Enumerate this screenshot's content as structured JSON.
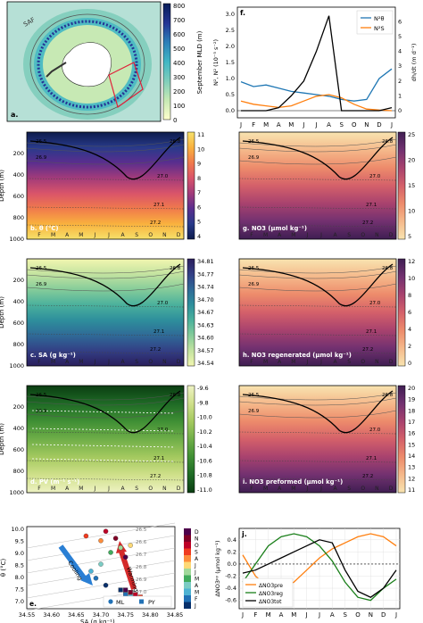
{
  "months": [
    "J",
    "F",
    "M",
    "A",
    "M",
    "J",
    "J",
    "A",
    "S",
    "O",
    "N",
    "D",
    "J"
  ],
  "months_short": [
    "F",
    "M",
    "A",
    "M",
    "J",
    "J",
    "A",
    "S",
    "O",
    "N",
    "D"
  ],
  "panels": {
    "a": {
      "label": "a.",
      "colorbar_label": "September MLD (m)",
      "colorbar_ticks": [
        "800",
        "700",
        "600",
        "500",
        "400",
        "300",
        "200",
        "100",
        "0"
      ],
      "saf_label": "SAF",
      "colormap": [
        "#ffffcc",
        "#c7e9b4",
        "#7fcdbb",
        "#41b6c4",
        "#2c7fb8",
        "#253494",
        "#081d58"
      ]
    },
    "f": {
      "label": "f.",
      "ylabel_left": "N², N² (10⁻⁵ s⁻²)",
      "ylabel_right": "dh/dt (m d⁻¹)",
      "yticks_left": [
        "0.0",
        "0.5",
        "1.0",
        "1.5",
        "2.0",
        "2.5",
        "3.0"
      ],
      "yticks_right": [
        "0",
        "1",
        "2",
        "3",
        "4",
        "5",
        "6"
      ],
      "legend": [
        "N²θ",
        "N²S"
      ],
      "colors": {
        "theta": "#1f77b4",
        "salt": "#ff7f0e",
        "dhdt": "#000000"
      }
    },
    "b": {
      "label": "b. θ (°C)",
      "cbar_ticks": [
        "11",
        "10",
        "9",
        "8",
        "7",
        "6",
        "5",
        "4"
      ],
      "colors": [
        "#0d1b4b",
        "#283a8a",
        "#5a2e8e",
        "#a23b7a",
        "#d9546a",
        "#f07a4c",
        "#f9b13e",
        "#f6e16a"
      ]
    },
    "g": {
      "label": "g. NO3 (μmol kg⁻¹)",
      "cbar_ticks": [
        "25",
        "20",
        "15",
        "10",
        "5"
      ],
      "colors": [
        "#f8e4b0",
        "#f5b98b",
        "#ed8b6b",
        "#d4606a",
        "#a8426e",
        "#723170",
        "#3f1e52"
      ]
    },
    "c": {
      "label": "c. SA (g kg⁻¹)",
      "cbar_ticks": [
        "34.81",
        "34.77",
        "34.74",
        "34.70",
        "34.67",
        "34.63",
        "34.60",
        "34.57",
        "34.54"
      ],
      "colors": [
        "#f2f6b0",
        "#c3e3a0",
        "#85cc9a",
        "#4bb19c",
        "#2e8f9c",
        "#2f6a97",
        "#333f85",
        "#2a1e5c"
      ]
    },
    "h": {
      "label": "h. NO3 regenerated (μmol kg⁻¹)",
      "cbar_ticks": [
        "12",
        "10",
        "8",
        "6",
        "4",
        "2",
        "0"
      ],
      "colors": [
        "#f8e4b0",
        "#f5b98b",
        "#ed8b6b",
        "#d4606a",
        "#a8426e",
        "#723170",
        "#3f1e52"
      ]
    },
    "d": {
      "label": "d. PV (m⁻¹ s⁻¹)",
      "cbar_ticks": [
        "-9.6",
        "-9.8",
        "-10.0",
        "-10.2",
        "-10.4",
        "-10.6",
        "-10.8",
        "-11.0"
      ],
      "colors": [
        "#0b3d12",
        "#1e6a25",
        "#3f8f34",
        "#6fae48",
        "#a4c95f",
        "#cfe08a",
        "#eef2c3"
      ]
    },
    "i": {
      "label": "i. NO3 preformed (μmol kg⁻¹)",
      "cbar_ticks": [
        "20",
        "19",
        "18",
        "17",
        "16",
        "15",
        "14",
        "13",
        "12",
        "11"
      ],
      "colors": [
        "#f8e4b0",
        "#f5b98b",
        "#ed8b6b",
        "#d4606a",
        "#a8426e",
        "#723170",
        "#3f1e52"
      ]
    },
    "e": {
      "label": "e.",
      "xlabel": "SA (g kg⁻¹)",
      "ylabel": "θ (°C)",
      "xticks": [
        "34.55",
        "34.60",
        "34.65",
        "34.70",
        "34.75",
        "34.80",
        "34.85"
      ],
      "yticks": [
        "10.0",
        "9.5",
        "9.0",
        "8.5",
        "8.0",
        "7.5",
        "7.0"
      ],
      "density_labels": [
        "26.5",
        "26.6",
        "26.7",
        "26.8",
        "26.9",
        "27.0"
      ],
      "cooling_label": "Cooling",
      "warming_label": "Warming",
      "legend_ml": "ML",
      "legend_py": "PY",
      "month_colors": [
        "#08306b",
        "#2171b5",
        "#4eb3d3",
        "#7bccc4",
        "#41ab5d",
        "#a1d99b",
        "#fed976",
        "#fd8d3c",
        "#f03b20",
        "#bd0026",
        "#800026",
        "#4d004b"
      ],
      "month_cbar": [
        "D",
        "N",
        "O",
        "S",
        "A",
        "J",
        "J",
        "M",
        "A",
        "M",
        "F",
        "J"
      ]
    },
    "j": {
      "label": "j.",
      "ylabel": "ΔNO3ᵖʸ (μmol kg⁻¹)",
      "yticks": [
        "0.4",
        "0.2",
        "0.0",
        "-0.2",
        "-0.4",
        "-0.6"
      ],
      "legend": [
        "ΔNO3pre",
        "ΔNO3reg",
        "ΔNO3tot"
      ],
      "colors": {
        "pre": "#ff7f0e",
        "reg": "#1a7f1a",
        "tot": "#000000"
      }
    },
    "depth_label": "Depth (m)",
    "depth_ticks": [
      "200",
      "400",
      "600",
      "800",
      "1000"
    ],
    "isopycnals_upper": [
      "26.5",
      "26.7",
      "26.9",
      "26.8",
      "26.8"
    ],
    "isopycnals_lower": [
      "27.0",
      "27.1",
      "27.2"
    ]
  },
  "chart_data": [
    {
      "type": "line",
      "panel": "f",
      "x": [
        "J",
        "F",
        "M",
        "A",
        "M",
        "J",
        "J",
        "A",
        "S",
        "O",
        "N",
        "D",
        "J"
      ],
      "series": [
        {
          "name": "N²θ",
          "values": [
            0.9,
            0.75,
            0.8,
            0.7,
            0.6,
            0.55,
            0.5,
            0.45,
            0.35,
            0.3,
            0.35,
            1.0,
            1.3
          ]
        },
        {
          "name": "N²S",
          "values": [
            0.3,
            0.2,
            0.15,
            0.1,
            0.15,
            0.3,
            0.45,
            0.5,
            0.4,
            0.2,
            0.05,
            0.02,
            0.0
          ]
        },
        {
          "name": "dh/dt",
          "values": [
            0.0,
            0.0,
            0.0,
            0.2,
            1.0,
            2.0,
            4.0,
            6.4,
            0.0,
            0.0,
            0.0,
            0.0,
            0.2
          ]
        }
      ]
    },
    {
      "type": "scatter",
      "panel": "e",
      "xlim": [
        34.55,
        34.85
      ],
      "ylim": [
        7.0,
        10.5
      ],
      "ml_points": [
        [
          34.71,
          8.0
        ],
        [
          34.69,
          8.3
        ],
        [
          34.68,
          8.6
        ],
        [
          34.7,
          8.9
        ],
        [
          34.72,
          9.4
        ],
        [
          34.74,
          9.6
        ],
        [
          34.76,
          9.7
        ],
        [
          34.7,
          9.9
        ],
        [
          34.67,
          10.1
        ],
        [
          34.71,
          10.3
        ],
        [
          34.73,
          10.0
        ],
        [
          34.75,
          9.2
        ]
      ],
      "py_points": [
        [
          34.74,
          7.8
        ],
        [
          34.75,
          7.6
        ],
        [
          34.76,
          7.5
        ],
        [
          34.77,
          7.4
        ],
        [
          34.78,
          7.3
        ],
        [
          34.79,
          7.3
        ],
        [
          34.8,
          7.3
        ],
        [
          34.79,
          7.4
        ],
        [
          34.78,
          7.5
        ],
        [
          34.77,
          7.6
        ],
        [
          34.76,
          7.7
        ],
        [
          34.75,
          7.8
        ]
      ]
    },
    {
      "type": "line",
      "panel": "j",
      "x": [
        "J",
        "F",
        "M",
        "A",
        "M",
        "J",
        "J",
        "A",
        "S",
        "O",
        "N",
        "D",
        "J"
      ],
      "series": [
        {
          "name": "ΔNO3pre",
          "values": [
            0.15,
            -0.2,
            -0.38,
            -0.4,
            -0.3,
            -0.1,
            0.1,
            0.25,
            0.35,
            0.45,
            0.5,
            0.45,
            0.3
          ]
        },
        {
          "name": "ΔNO3reg",
          "values": [
            -0.3,
            0.0,
            0.3,
            0.45,
            0.5,
            0.45,
            0.3,
            0.05,
            -0.3,
            -0.55,
            -0.6,
            -0.4,
            -0.25
          ]
        },
        {
          "name": "ΔNO3tot",
          "values": [
            -0.15,
            -0.1,
            0.0,
            0.1,
            0.2,
            0.3,
            0.4,
            0.35,
            -0.1,
            -0.45,
            -0.55,
            -0.4,
            -0.1
          ]
        }
      ]
    }
  ]
}
